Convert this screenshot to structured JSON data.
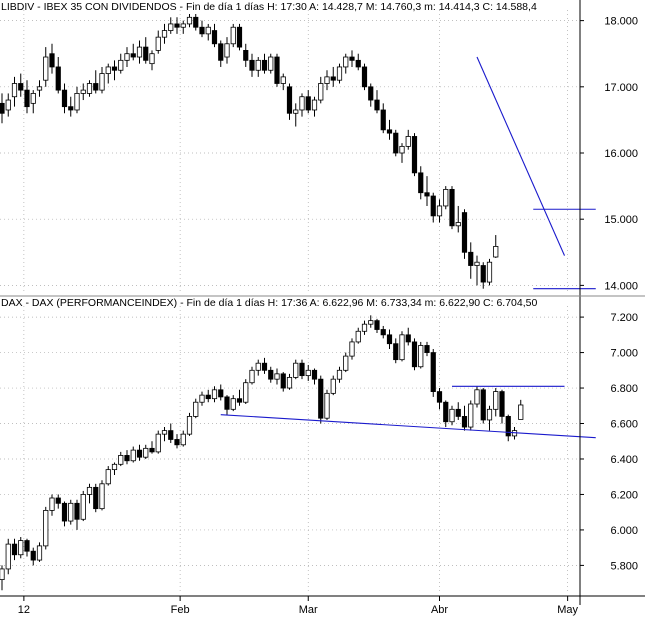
{
  "chart_data": [
    {
      "type": "candlestick",
      "header": "LIBDIV - IBEX 35 CON DIVIDENDOS - Fin de día 1 días  H: 17:30  A: 14.428,7  M: 14.760,3  m: 14.414,3  C: 14.588,4",
      "y_ticks": [
        "18.000",
        "17.000",
        "16.000",
        "15.000",
        "14.000"
      ],
      "y_tick_values": [
        18000,
        17000,
        16000,
        15000,
        14000
      ],
      "ylim": [
        13900,
        18100
      ],
      "candles": [
        {
          "o": 16750,
          "h": 16900,
          "l": 16450,
          "c": 16600
        },
        {
          "o": 16650,
          "h": 16900,
          "l": 16550,
          "c": 16800
        },
        {
          "o": 16850,
          "h": 17150,
          "l": 16700,
          "c": 17050
        },
        {
          "o": 17050,
          "h": 17200,
          "l": 16850,
          "c": 16950
        },
        {
          "o": 16950,
          "h": 17100,
          "l": 16600,
          "c": 16700
        },
        {
          "o": 16750,
          "h": 16950,
          "l": 16600,
          "c": 16900
        },
        {
          "o": 16950,
          "h": 17100,
          "l": 16850,
          "c": 17000
        },
        {
          "o": 17100,
          "h": 17600,
          "l": 17000,
          "c": 17450
        },
        {
          "o": 17500,
          "h": 17650,
          "l": 17200,
          "c": 17300
        },
        {
          "o": 17300,
          "h": 17450,
          "l": 16900,
          "c": 16950
        },
        {
          "o": 16950,
          "h": 17050,
          "l": 16600,
          "c": 16700
        },
        {
          "o": 16700,
          "h": 16850,
          "l": 16550,
          "c": 16650
        },
        {
          "o": 16650,
          "h": 17000,
          "l": 16600,
          "c": 16900
        },
        {
          "o": 16900,
          "h": 17050,
          "l": 16800,
          "c": 16950
        },
        {
          "o": 16900,
          "h": 17100,
          "l": 16850,
          "c": 17050
        },
        {
          "o": 17050,
          "h": 17250,
          "l": 16900,
          "c": 16950
        },
        {
          "o": 16950,
          "h": 17300,
          "l": 16900,
          "c": 17200
        },
        {
          "o": 17200,
          "h": 17350,
          "l": 17050,
          "c": 17300
        },
        {
          "o": 17300,
          "h": 17400,
          "l": 17100,
          "c": 17250
        },
        {
          "o": 17250,
          "h": 17500,
          "l": 17200,
          "c": 17400
        },
        {
          "o": 17400,
          "h": 17600,
          "l": 17300,
          "c": 17500
        },
        {
          "o": 17500,
          "h": 17650,
          "l": 17400,
          "c": 17450
        },
        {
          "o": 17450,
          "h": 17700,
          "l": 17350,
          "c": 17600
        },
        {
          "o": 17600,
          "h": 17750,
          "l": 17350,
          "c": 17400
        },
        {
          "o": 17350,
          "h": 17550,
          "l": 17250,
          "c": 17500
        },
        {
          "o": 17550,
          "h": 17850,
          "l": 17500,
          "c": 17750
        },
        {
          "o": 17750,
          "h": 17950,
          "l": 17650,
          "c": 17850
        },
        {
          "o": 17850,
          "h": 18050,
          "l": 17800,
          "c": 17950
        },
        {
          "o": 17950,
          "h": 18050,
          "l": 17800,
          "c": 17900
        },
        {
          "o": 17900,
          "h": 18000,
          "l": 17800,
          "c": 17950
        },
        {
          "o": 17950,
          "h": 18100,
          "l": 17900,
          "c": 18050
        },
        {
          "o": 18050,
          "h": 18100,
          "l": 17850,
          "c": 17900
        },
        {
          "o": 17900,
          "h": 18000,
          "l": 17750,
          "c": 17800
        },
        {
          "o": 17800,
          "h": 17950,
          "l": 17700,
          "c": 17900
        },
        {
          "o": 17850,
          "h": 17950,
          "l": 17600,
          "c": 17650
        },
        {
          "o": 17650,
          "h": 17700,
          "l": 17300,
          "c": 17400
        },
        {
          "o": 17450,
          "h": 17750,
          "l": 17350,
          "c": 17650
        },
        {
          "o": 17650,
          "h": 17950,
          "l": 17600,
          "c": 17900
        },
        {
          "o": 17900,
          "h": 17950,
          "l": 17550,
          "c": 17600
        },
        {
          "o": 17550,
          "h": 17650,
          "l": 17300,
          "c": 17400
        },
        {
          "o": 17400,
          "h": 17500,
          "l": 17150,
          "c": 17250
        },
        {
          "o": 17250,
          "h": 17450,
          "l": 17150,
          "c": 17400
        },
        {
          "o": 17400,
          "h": 17500,
          "l": 17200,
          "c": 17250
        },
        {
          "o": 17250,
          "h": 17500,
          "l": 17200,
          "c": 17450
        },
        {
          "o": 17450,
          "h": 17500,
          "l": 17000,
          "c": 17050
        },
        {
          "o": 17050,
          "h": 17200,
          "l": 16950,
          "c": 17150
        },
        {
          "o": 17000,
          "h": 17050,
          "l": 16500,
          "c": 16600
        },
        {
          "o": 16600,
          "h": 16750,
          "l": 16400,
          "c": 16650
        },
        {
          "o": 16650,
          "h": 16900,
          "l": 16550,
          "c": 16850
        },
        {
          "o": 16850,
          "h": 16950,
          "l": 16600,
          "c": 16650
        },
        {
          "o": 16650,
          "h": 16850,
          "l": 16550,
          "c": 16800
        },
        {
          "o": 16800,
          "h": 17150,
          "l": 16750,
          "c": 17050
        },
        {
          "o": 17050,
          "h": 17250,
          "l": 16950,
          "c": 17150
        },
        {
          "o": 17150,
          "h": 17300,
          "l": 17000,
          "c": 17100
        },
        {
          "o": 17100,
          "h": 17350,
          "l": 17050,
          "c": 17300
        },
        {
          "o": 17300,
          "h": 17500,
          "l": 17200,
          "c": 17450
        },
        {
          "o": 17450,
          "h": 17550,
          "l": 17300,
          "c": 17400
        },
        {
          "o": 17400,
          "h": 17500,
          "l": 17250,
          "c": 17300
        },
        {
          "o": 17300,
          "h": 17350,
          "l": 16950,
          "c": 17000
        },
        {
          "o": 17000,
          "h": 17050,
          "l": 16700,
          "c": 16800
        },
        {
          "o": 16800,
          "h": 16950,
          "l": 16600,
          "c": 16650
        },
        {
          "o": 16650,
          "h": 16750,
          "l": 16300,
          "c": 16350
        },
        {
          "o": 16350,
          "h": 16500,
          "l": 16200,
          "c": 16300
        },
        {
          "o": 16300,
          "h": 16350,
          "l": 15950,
          "c": 16000
        },
        {
          "o": 16000,
          "h": 16150,
          "l": 15850,
          "c": 16100
        },
        {
          "o": 16100,
          "h": 16350,
          "l": 16050,
          "c": 16250
        },
        {
          "o": 16250,
          "h": 16300,
          "l": 15650,
          "c": 15700
        },
        {
          "o": 15700,
          "h": 15800,
          "l": 15300,
          "c": 15400
        },
        {
          "o": 15400,
          "h": 15650,
          "l": 15200,
          "c": 15350
        },
        {
          "o": 15350,
          "h": 15400,
          "l": 14950,
          "c": 15050
        },
        {
          "o": 15050,
          "h": 15300,
          "l": 14950,
          "c": 15200
        },
        {
          "o": 15200,
          "h": 15500,
          "l": 15150,
          "c": 15450
        },
        {
          "o": 15450,
          "h": 15500,
          "l": 14850,
          "c": 14900
        },
        {
          "o": 14900,
          "h": 15200,
          "l": 14800,
          "c": 14950
        },
        {
          "o": 15100,
          "h": 15150,
          "l": 14400,
          "c": 14500
        },
        {
          "o": 14500,
          "h": 14650,
          "l": 14100,
          "c": 14300
        },
        {
          "o": 14300,
          "h": 14450,
          "l": 14000,
          "c": 14350
        },
        {
          "o": 14300,
          "h": 14350,
          "l": 13950,
          "c": 14050
        },
        {
          "o": 14050,
          "h": 14400,
          "l": 14000,
          "c": 14350
        },
        {
          "o": 14428.7,
          "h": 14760.3,
          "l": 14414.3,
          "c": 14588.4
        }
      ],
      "trendlines": [
        {
          "x1": 76,
          "y1": 17450,
          "x2": 90,
          "y2": 14450
        },
        {
          "x1": 85,
          "y1": 15150,
          "x2": 95,
          "y2": 15150
        },
        {
          "x1": 85,
          "y1": 13950,
          "x2": 95,
          "y2": 13950
        }
      ]
    },
    {
      "type": "candlestick",
      "header": "DAX - DAX (PERFORMANCEINDEX) - Fin de día 1 días  H: 17:36  A: 6.622,96  M: 6.733,34  m: 6.622,90  C: 6.704,50",
      "y_ticks": [
        "7.200",
        "7.000",
        "6.800",
        "6.600",
        "6.400",
        "6.200",
        "6.000",
        "5.800"
      ],
      "y_tick_values": [
        7200,
        7000,
        6800,
        6600,
        6400,
        6200,
        6000,
        5800
      ],
      "ylim": [
        5650,
        7240
      ],
      "candles": [
        {
          "o": 5720,
          "h": 5800,
          "l": 5660,
          "c": 5780
        },
        {
          "o": 5780,
          "h": 5950,
          "l": 5750,
          "c": 5920
        },
        {
          "o": 5920,
          "h": 5950,
          "l": 5830,
          "c": 5860
        },
        {
          "o": 5860,
          "h": 5960,
          "l": 5840,
          "c": 5940
        },
        {
          "o": 5940,
          "h": 5950,
          "l": 5850,
          "c": 5880
        },
        {
          "o": 5880,
          "h": 5900,
          "l": 5800,
          "c": 5830
        },
        {
          "o": 5830,
          "h": 5930,
          "l": 5820,
          "c": 5910
        },
        {
          "o": 5910,
          "h": 6130,
          "l": 5890,
          "c": 6110
        },
        {
          "o": 6110,
          "h": 6200,
          "l": 6080,
          "c": 6180
        },
        {
          "o": 6180,
          "h": 6200,
          "l": 6120,
          "c": 6150
        },
        {
          "o": 6150,
          "h": 6160,
          "l": 6020,
          "c": 6050
        },
        {
          "o": 6050,
          "h": 6170,
          "l": 6030,
          "c": 6150
        },
        {
          "o": 6150,
          "h": 6170,
          "l": 6000,
          "c": 6060
        },
        {
          "o": 6060,
          "h": 6220,
          "l": 6050,
          "c": 6200
        },
        {
          "o": 6200,
          "h": 6260,
          "l": 6150,
          "c": 6240
        },
        {
          "o": 6240,
          "h": 6260,
          "l": 6100,
          "c": 6120
        },
        {
          "o": 6120,
          "h": 6280,
          "l": 6110,
          "c": 6260
        },
        {
          "o": 6260,
          "h": 6360,
          "l": 6250,
          "c": 6340
        },
        {
          "o": 6340,
          "h": 6380,
          "l": 6310,
          "c": 6370
        },
        {
          "o": 6370,
          "h": 6440,
          "l": 6360,
          "c": 6420
        },
        {
          "o": 6420,
          "h": 6450,
          "l": 6370,
          "c": 6390
        },
        {
          "o": 6390,
          "h": 6470,
          "l": 6380,
          "c": 6450
        },
        {
          "o": 6450,
          "h": 6480,
          "l": 6390,
          "c": 6410
        },
        {
          "o": 6410,
          "h": 6480,
          "l": 6400,
          "c": 6460
        },
        {
          "o": 6460,
          "h": 6500,
          "l": 6430,
          "c": 6440
        },
        {
          "o": 6440,
          "h": 6560,
          "l": 6430,
          "c": 6540
        },
        {
          "o": 6540,
          "h": 6580,
          "l": 6500,
          "c": 6560
        },
        {
          "o": 6560,
          "h": 6600,
          "l": 6490,
          "c": 6510
        },
        {
          "o": 6510,
          "h": 6540,
          "l": 6460,
          "c": 6480
        },
        {
          "o": 6480,
          "h": 6560,
          "l": 6470,
          "c": 6540
        },
        {
          "o": 6540,
          "h": 6660,
          "l": 6530,
          "c": 6640
        },
        {
          "o": 6640,
          "h": 6740,
          "l": 6630,
          "c": 6720
        },
        {
          "o": 6720,
          "h": 6780,
          "l": 6700,
          "c": 6760
        },
        {
          "o": 6760,
          "h": 6790,
          "l": 6720,
          "c": 6740
        },
        {
          "o": 6740,
          "h": 6810,
          "l": 6720,
          "c": 6790
        },
        {
          "o": 6790,
          "h": 6820,
          "l": 6730,
          "c": 6750
        },
        {
          "o": 6750,
          "h": 6760,
          "l": 6650,
          "c": 6680
        },
        {
          "o": 6680,
          "h": 6760,
          "l": 6670,
          "c": 6740
        },
        {
          "o": 6740,
          "h": 6790,
          "l": 6700,
          "c": 6720
        },
        {
          "o": 6720,
          "h": 6850,
          "l": 6710,
          "c": 6830
        },
        {
          "o": 6830,
          "h": 6920,
          "l": 6820,
          "c": 6900
        },
        {
          "o": 6900,
          "h": 6960,
          "l": 6870,
          "c": 6940
        },
        {
          "o": 6940,
          "h": 6970,
          "l": 6880,
          "c": 6900
        },
        {
          "o": 6900,
          "h": 6920,
          "l": 6830,
          "c": 6850
        },
        {
          "o": 6850,
          "h": 6910,
          "l": 6820,
          "c": 6880
        },
        {
          "o": 6880,
          "h": 6890,
          "l": 6780,
          "c": 6800
        },
        {
          "o": 6800,
          "h": 6880,
          "l": 6790,
          "c": 6860
        },
        {
          "o": 6860,
          "h": 6960,
          "l": 6850,
          "c": 6940
        },
        {
          "o": 6940,
          "h": 6960,
          "l": 6850,
          "c": 6870
        },
        {
          "o": 6870,
          "h": 6930,
          "l": 6840,
          "c": 6900
        },
        {
          "o": 6900,
          "h": 6910,
          "l": 6820,
          "c": 6850
        },
        {
          "o": 6850,
          "h": 6870,
          "l": 6600,
          "c": 6630
        },
        {
          "o": 6630,
          "h": 6790,
          "l": 6620,
          "c": 6770
        },
        {
          "o": 6770,
          "h": 6870,
          "l": 6760,
          "c": 6850
        },
        {
          "o": 6850,
          "h": 6920,
          "l": 6830,
          "c": 6900
        },
        {
          "o": 6900,
          "h": 7000,
          "l": 6890,
          "c": 6980
        },
        {
          "o": 6980,
          "h": 7080,
          "l": 6960,
          "c": 7060
        },
        {
          "o": 7060,
          "h": 7140,
          "l": 7050,
          "c": 7120
        },
        {
          "o": 7120,
          "h": 7180,
          "l": 7100,
          "c": 7160
        },
        {
          "o": 7160,
          "h": 7210,
          "l": 7140,
          "c": 7180
        },
        {
          "o": 7180,
          "h": 7190,
          "l": 7110,
          "c": 7130
        },
        {
          "o": 7130,
          "h": 7150,
          "l": 7080,
          "c": 7100
        },
        {
          "o": 7100,
          "h": 7130,
          "l": 7020,
          "c": 7050
        },
        {
          "o": 7050,
          "h": 7080,
          "l": 6940,
          "c": 6960
        },
        {
          "o": 6960,
          "h": 7120,
          "l": 6950,
          "c": 7100
        },
        {
          "o": 7100,
          "h": 7140,
          "l": 7040,
          "c": 7060
        },
        {
          "o": 7060,
          "h": 7080,
          "l": 6900,
          "c": 6920
        },
        {
          "o": 6920,
          "h": 7060,
          "l": 6910,
          "c": 7040
        },
        {
          "o": 7040,
          "h": 7060,
          "l": 6980,
          "c": 7000
        },
        {
          "o": 7000,
          "h": 7020,
          "l": 6750,
          "c": 6780
        },
        {
          "o": 6780,
          "h": 6800,
          "l": 6680,
          "c": 6720
        },
        {
          "o": 6720,
          "h": 6730,
          "l": 6580,
          "c": 6610
        },
        {
          "o": 6610,
          "h": 6700,
          "l": 6590,
          "c": 6680
        },
        {
          "o": 6680,
          "h": 6720,
          "l": 6620,
          "c": 6640
        },
        {
          "o": 6640,
          "h": 6700,
          "l": 6560,
          "c": 6580
        },
        {
          "o": 6580,
          "h": 6730,
          "l": 6560,
          "c": 6710
        },
        {
          "o": 6710,
          "h": 6810,
          "l": 6690,
          "c": 6790
        },
        {
          "o": 6790,
          "h": 6800,
          "l": 6600,
          "c": 6620
        },
        {
          "o": 6620,
          "h": 6700,
          "l": 6560,
          "c": 6680
        },
        {
          "o": 6680,
          "h": 6800,
          "l": 6640,
          "c": 6780
        },
        {
          "o": 6780,
          "h": 6790,
          "l": 6600,
          "c": 6640
        },
        {
          "o": 6640,
          "h": 6650,
          "l": 6500,
          "c": 6530
        },
        {
          "o": 6530,
          "h": 6580,
          "l": 6510,
          "c": 6560
        },
        {
          "o": 6622.96,
          "h": 6733.34,
          "l": 6622.9,
          "c": 6704.5
        }
      ],
      "trendlines": [
        {
          "x1": 35,
          "y1": 6650,
          "x2": 95,
          "y2": 6520
        },
        {
          "x1": 72,
          "y1": 6810,
          "x2": 90,
          "y2": 6810
        }
      ]
    }
  ],
  "x_axis": {
    "labels": [
      "12",
      "Feb",
      "Mar",
      "Abr",
      "May"
    ],
    "label_index": [
      3.5,
      28.5,
      49,
      70,
      90.5
    ]
  },
  "colors": {
    "candle_body_up": "#ffffff",
    "candle_body_down": "#000000",
    "candle_outline": "#000000",
    "trendline": "#1a1acc",
    "grid": "#aaaaaa"
  }
}
